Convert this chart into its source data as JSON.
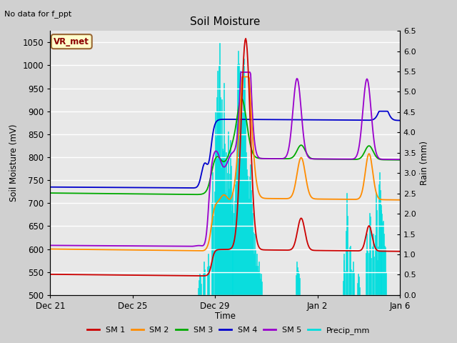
{
  "title": "Soil Moisture",
  "top_left_text": "No data for f_ppt",
  "annotation_box": "VR_met",
  "ylabel_left": "Soil Moisture (mV)",
  "ylabel_right": "Rain (mm)",
  "xlabel": "Time",
  "ylim_left": [
    500,
    1075
  ],
  "ylim_right": [
    0.0,
    6.5
  ],
  "yticks_left": [
    500,
    550,
    600,
    650,
    700,
    750,
    800,
    850,
    900,
    950,
    1000,
    1050
  ],
  "yticks_right": [
    0.0,
    0.5,
    1.0,
    1.5,
    2.0,
    2.5,
    3.0,
    3.5,
    4.0,
    4.5,
    5.0,
    5.5,
    6.0,
    6.5
  ],
  "xtick_labels": [
    "Dec 21",
    "Dec 25",
    "Dec 29",
    "Jan 2",
    "Jan 6"
  ],
  "xtick_positions": [
    0,
    4,
    8,
    13,
    17
  ],
  "colors": {
    "SM1": "#cc0000",
    "SM2": "#ff8c00",
    "SM3": "#00aa00",
    "SM4": "#0000cc",
    "SM5": "#9900cc",
    "Precip": "#00dddd",
    "fig_bg": "#d0d0d0",
    "plot_bg": "#e8e8e8"
  },
  "legend_labels": [
    "SM 1",
    "SM 2",
    "SM 3",
    "SM 4",
    "SM 5",
    "Precip_mm"
  ],
  "num_points": 500
}
